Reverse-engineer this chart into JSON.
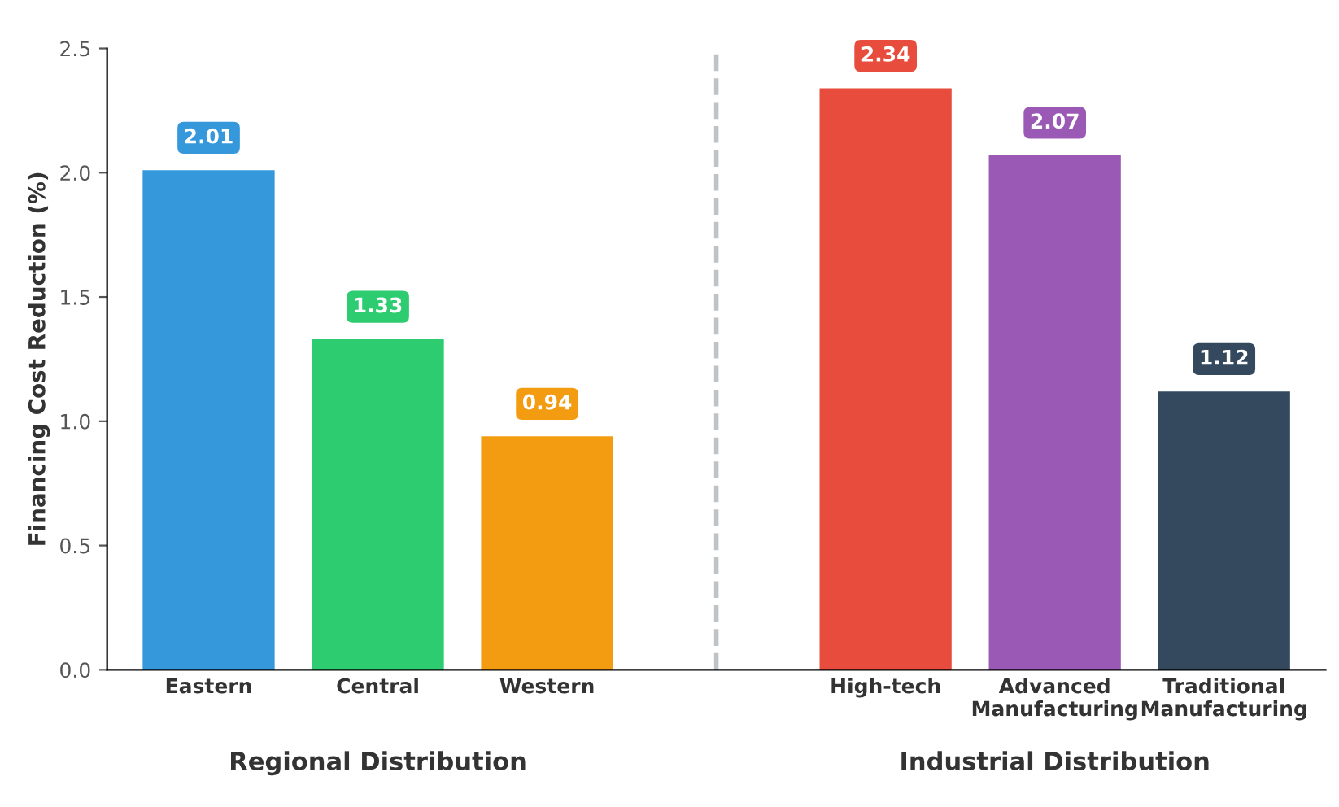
{
  "chart_data": {
    "type": "bar",
    "ylabel": "Financing Cost Reduction (%)",
    "categories": [
      "Eastern",
      "Central",
      "Western",
      null,
      "High-tech",
      "Advanced\nManufacturing",
      "Traditional\nManufacturing"
    ],
    "values": [
      2.01,
      1.33,
      0.94,
      null,
      2.34,
      2.07,
      1.12
    ],
    "colors": [
      "#3498db",
      "#2ecc71",
      "#f39c12",
      "#ffffff",
      "#e74c3c",
      "#9b59b6",
      "#34495e"
    ],
    "ylim": [
      0,
      2.5
    ],
    "yticks": [
      {
        "value": 0,
        "label": "0.0"
      },
      {
        "value": 0.5,
        "label": "0.5"
      },
      {
        "value": 1,
        "label": "1.0"
      },
      {
        "value": 1.5,
        "label": "1.5"
      },
      {
        "value": 2,
        "label": "2.0"
      },
      {
        "value": 2.5,
        "label": "2.5"
      }
    ],
    "data_labels": true,
    "annotations": [
      "Regional Distribution",
      "Industrial Distribution"
    ]
  }
}
